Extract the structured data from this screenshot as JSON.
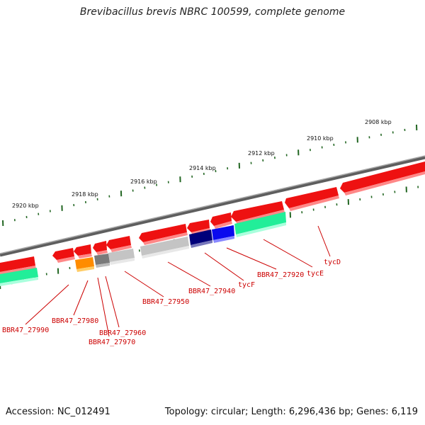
{
  "title": "Brevibacillus brevis NBRC 100599, complete genome",
  "footer": {
    "accession": "Accession: NC_012491",
    "stats": "Topology: circular; Length: 6,296,436 bp; Genes: 6,119"
  },
  "kbp_labels": [
    "2908 kbp",
    "2910 kbp",
    "2912 kbp",
    "2914 kbp",
    "2916 kbp",
    "2918 kbp",
    "2920 kbp"
  ],
  "gene_labels": [
    "tycD",
    "tycE",
    "BBR47_27920",
    "tycF",
    "BBR47_27940",
    "BBR47_27950",
    "BBR47_27960",
    "BBR47_27970",
    "BBR47_27980",
    "BBR47_27990"
  ],
  "colors": {
    "backbone": "#7a7a7a",
    "cds": "#ee1111",
    "cds_shade": "#ff7777",
    "gene_bar": "#c8c8c8",
    "navy": "#00007a",
    "blue": "#0a0aee",
    "cyan": "#22ee99",
    "orange": "#ff8c00",
    "gray": "#808080",
    "tick": "#226622",
    "label": "#cc0000"
  }
}
